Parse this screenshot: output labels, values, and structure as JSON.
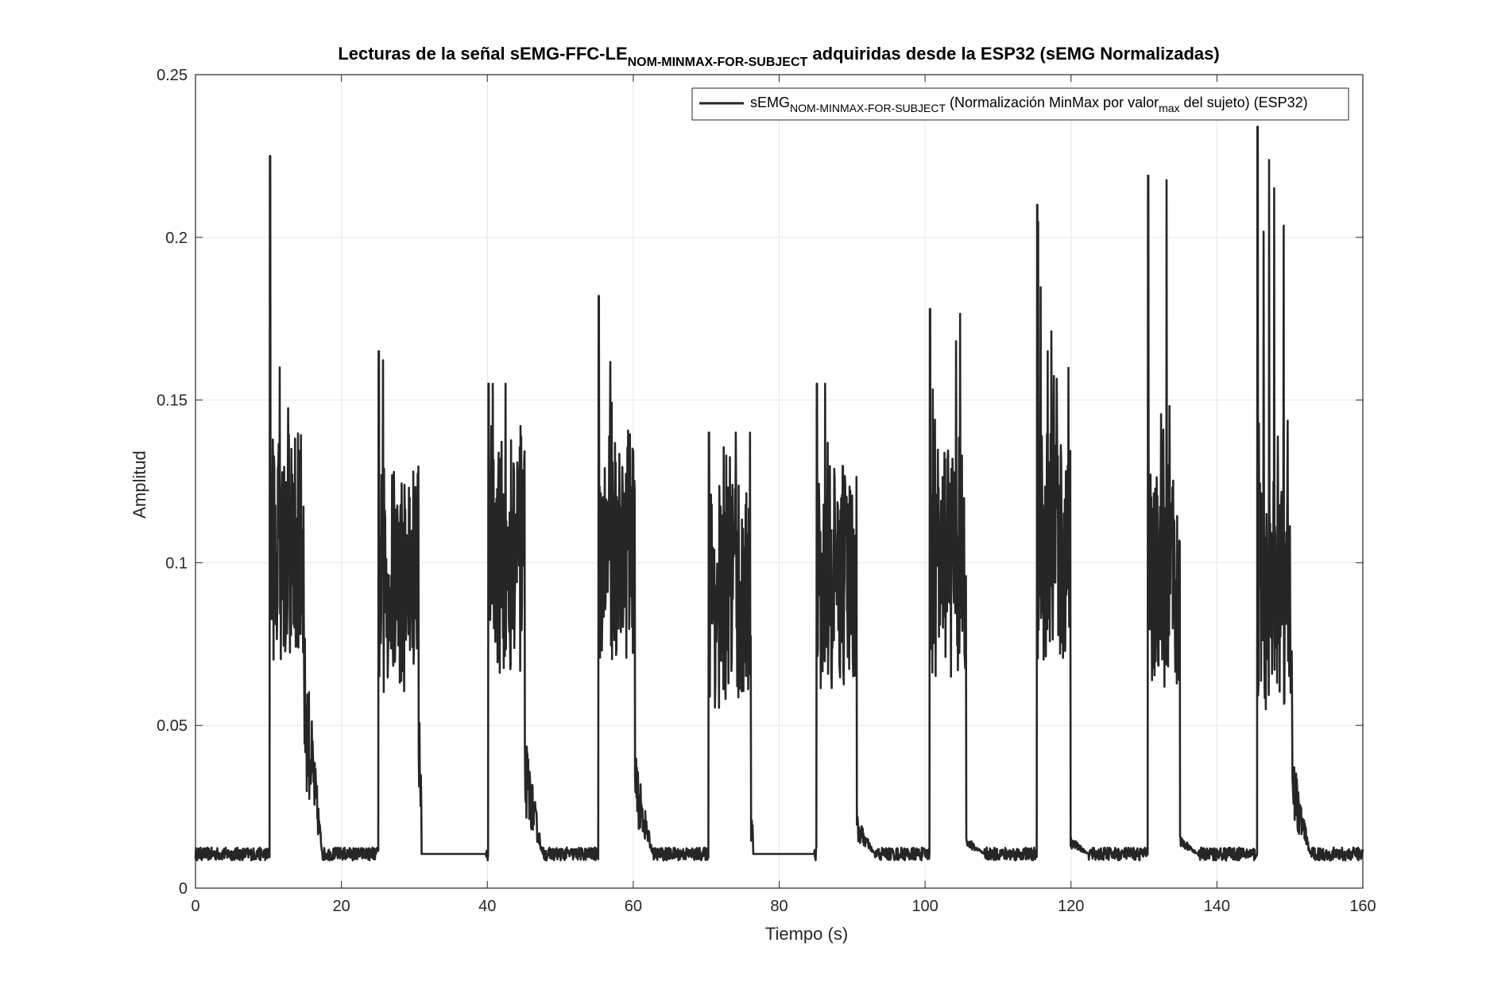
{
  "chart_data": {
    "type": "line",
    "title": {
      "main": "Lecturas de la señal sEMG-FFC-LE",
      "sub": "NOM-MINMAX-FOR-SUBJECT",
      "rest": " adquiridas desde la ESP32 (sEMG Normalizadas)"
    },
    "xlabel": "Tiempo (s)",
    "ylabel": "Amplitud",
    "xlim": [
      0,
      160
    ],
    "ylim": [
      0,
      0.25
    ],
    "xticks": [
      0,
      20,
      40,
      60,
      80,
      100,
      120,
      140,
      160
    ],
    "yticks": [
      0,
      0.05,
      0.1,
      0.15,
      0.2,
      0.25
    ],
    "xtick_labels": [
      "0",
      "20",
      "40",
      "60",
      "80",
      "100",
      "120",
      "140",
      "160"
    ],
    "ytick_labels": [
      "0",
      "0.05",
      "0.1",
      "0.15",
      "0.2",
      "0.25"
    ],
    "grid": true,
    "legend_position": "top-right",
    "legend": {
      "a": "sEMG",
      "sub1": "NOM-MINMAX-FOR-SUBJECT",
      "b": " (Normalización MinMax por valor",
      "sub2": "max",
      "c": " del sujeto) (ESP32)"
    },
    "colors": {
      "line": "#262626",
      "grid": "#e6e6e6",
      "axis": "#262626"
    },
    "series": [
      {
        "baseline": 0.0105,
        "bursts": [
          {
            "start": 10.2,
            "end": 14.9,
            "mean": 0.105,
            "peak": 0.225,
            "tail": 0.065
          },
          {
            "start": 25.1,
            "end": 30.6,
            "mean": 0.095,
            "peak": 0.165,
            "tail": 0.045
          },
          {
            "start": 40.1,
            "end": 45.1,
            "mean": 0.1,
            "peak": 0.155,
            "tail": 0.04
          },
          {
            "start": 55.2,
            "end": 60.2,
            "mean": 0.105,
            "peak": 0.182,
            "tail": 0.035
          },
          {
            "start": 70.3,
            "end": 76.1,
            "mean": 0.09,
            "peak": 0.14,
            "tail": 0.02
          },
          {
            "start": 85.1,
            "end": 90.6,
            "mean": 0.095,
            "peak": 0.155,
            "tail": 0.02
          },
          {
            "start": 100.6,
            "end": 105.6,
            "mean": 0.1,
            "peak": 0.178,
            "tail": 0.015
          },
          {
            "start": 115.3,
            "end": 119.9,
            "mean": 0.105,
            "peak": 0.21,
            "tail": 0.015
          },
          {
            "start": 130.5,
            "end": 134.9,
            "mean": 0.095,
            "peak": 0.219,
            "tail": 0.015
          },
          {
            "start": 145.5,
            "end": 150.3,
            "mean": 0.09,
            "peak": 0.234,
            "tail": 0.035
          }
        ],
        "flat_segments": [
          {
            "start": 31.0,
            "end": 39.8,
            "value": 0.0105
          },
          {
            "start": 76.4,
            "end": 84.8,
            "value": 0.0105
          }
        ]
      }
    ]
  }
}
